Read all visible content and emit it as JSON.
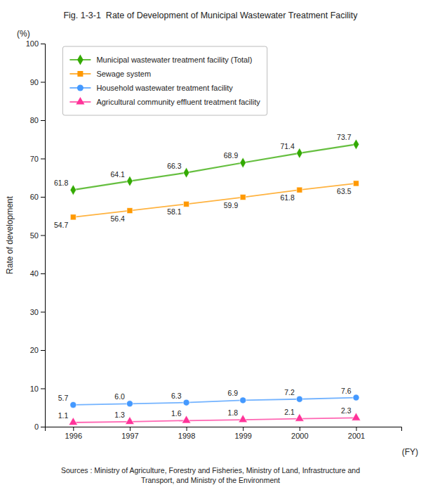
{
  "chart_data": {
    "type": "line",
    "title": "Fig. 1-3-1  Rate of Development of Municipal Wastewater Treatment Facility",
    "ylabel": "Rate of development",
    "xlabel": "(FY)",
    "annotations": [
      "(%)",
      "Sources : Ministry of Agriculture, Forestry and Fisheries, Ministry of Land, Infrastructure and\nTransport, and Ministry of the Environment"
    ],
    "x": [
      1996,
      1997,
      1998,
      1999,
      2000,
      2001
    ],
    "xlim": [
      1995.5,
      2001.8
    ],
    "xticks": [
      1996,
      1997,
      1998,
      1999,
      2000,
      2001
    ],
    "ylim": [
      0,
      100
    ],
    "yticks": [
      0,
      10,
      20,
      30,
      40,
      50,
      60,
      70,
      80,
      90,
      100
    ],
    "grid": false,
    "legend": "upper left",
    "data_labels": true,
    "series": [
      {
        "name": "Municipal wastewater treatment facility (Total)",
        "color": "#33aa00",
        "marker": "diamond",
        "values": [
          61.8,
          64.1,
          66.3,
          68.9,
          71.4,
          73.7
        ],
        "value_labels": [
          "61.8",
          "64.1",
          "66.3",
          "68.9",
          "71.4",
          "73.7"
        ]
      },
      {
        "name": "Sewage system",
        "color": "#ff9900",
        "marker": "square",
        "values": [
          54.7,
          56.4,
          58.1,
          59.9,
          61.8,
          63.5
        ],
        "value_labels": [
          "54.7",
          "56.4",
          "58.1",
          "59.9",
          "61.8",
          "63.5"
        ]
      },
      {
        "name": "Household wastewater treatment facility",
        "color": "#4499ff",
        "marker": "circle",
        "values": [
          5.7,
          6.0,
          6.3,
          6.9,
          7.2,
          7.6
        ],
        "value_labels": [
          "5.7",
          "6.0",
          "6.3",
          "6.9",
          "7.2",
          "7.6"
        ]
      },
      {
        "name": "Agricultural community effluent treatment facility",
        "color": "#ff3399",
        "marker": "triangle",
        "values": [
          1.1,
          1.3,
          1.6,
          1.8,
          2.1,
          2.3
        ],
        "value_labels": [
          "1.1",
          "1.3",
          "1.6",
          "1.8",
          "2.1",
          "2.3"
        ]
      }
    ]
  }
}
